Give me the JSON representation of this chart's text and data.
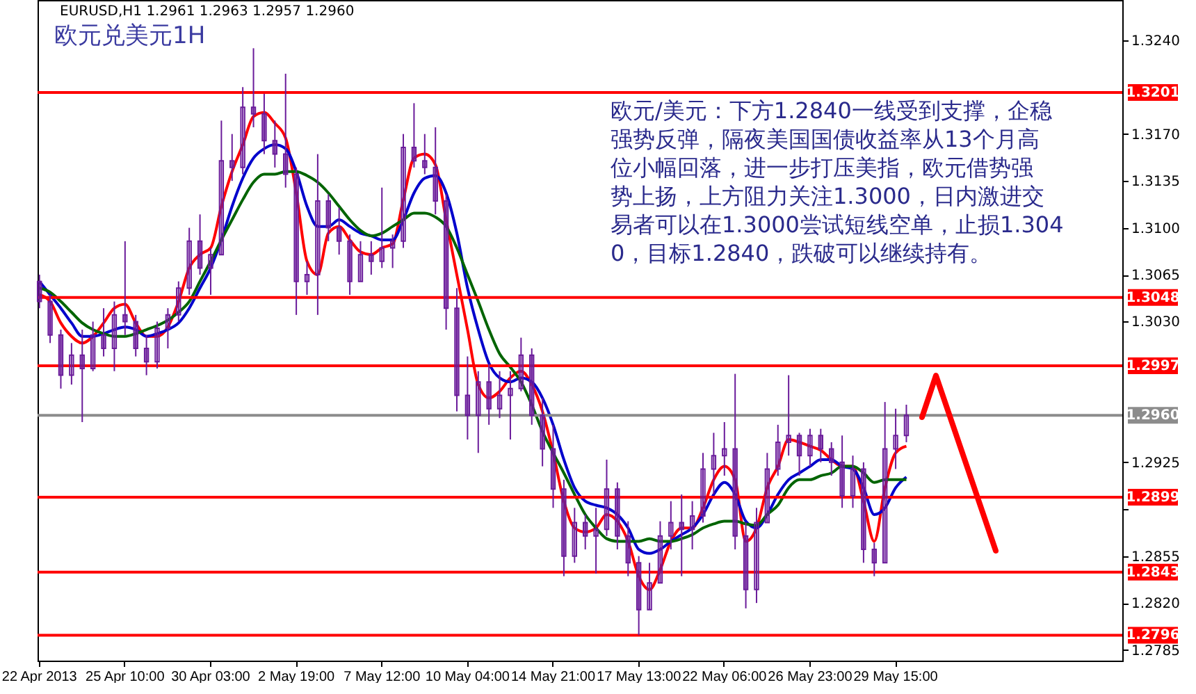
{
  "chart_data": {
    "type": "candlestick",
    "title": "欧元兑美元1H",
    "subtitle": "EURUSD,H1  1.2961 1.2963 1.2957 1.2960",
    "color": "#6a1b9a",
    "annotations": [
      "欧元/美元：下方1.2840一线受到支撑，企稳强势反弹，隔夜美国国债收益率从13个月高位小幅回落，进一步打压美指，欧元借势强势上扬，上方阻力关注1.3000，日内激进交易者可以在1.3000尝试短线空单，止损1.3040，目标1.2840，跌破可以继续持有。"
    ],
    "categories": [
      "22 Apr 2013",
      null,
      null,
      null,
      null,
      null,
      null,
      null,
      "25 Apr 10:00",
      null,
      null,
      null,
      null,
      null,
      null,
      null,
      "30 Apr 03:00",
      null,
      null,
      null,
      null,
      null,
      null,
      null,
      "2 May 19:00",
      null,
      null,
      null,
      null,
      null,
      null,
      null,
      "7 May 12:00",
      null,
      null,
      null,
      null,
      null,
      null,
      null,
      "10 May 04:00",
      null,
      null,
      null,
      null,
      null,
      null,
      null,
      "14 May 21:00",
      null,
      null,
      null,
      null,
      null,
      null,
      null,
      "17 May 13:00",
      null,
      null,
      null,
      null,
      null,
      null,
      null,
      "22 May 06:00",
      null,
      null,
      null,
      null,
      null,
      null,
      null,
      "26 May 23:00",
      null,
      null,
      null,
      null,
      null,
      null,
      null,
      "29 May 15:00",
      null,
      null,
      null,
      null,
      null,
      null,
      null,
      null,
      null,
      null,
      null,
      null,
      null,
      null,
      null,
      null,
      null,
      null,
      null,
      null,
      null
    ],
    "ohlc": [
      [
        1.306,
        1.3065,
        1.304,
        1.3045
      ],
      [
        1.3045,
        1.305,
        1.3014,
        1.302
      ],
      [
        1.302,
        1.3024,
        1.298,
        1.299
      ],
      [
        1.299,
        1.3014,
        1.2983,
        1.3005
      ],
      [
        1.3005,
        1.3024,
        1.2955,
        1.2995
      ],
      [
        1.2995,
        1.303,
        1.2993,
        1.302
      ],
      [
        1.302,
        1.304,
        1.3004,
        1.301
      ],
      [
        1.301,
        1.3045,
        1.2993,
        1.3035
      ],
      [
        1.3035,
        1.309,
        1.302,
        1.303
      ],
      [
        1.303,
        1.3035,
        1.3004,
        1.301
      ],
      [
        1.301,
        1.302,
        1.299,
        1.3
      ],
      [
        1.3,
        1.303,
        1.2995,
        1.3025
      ],
      [
        1.3025,
        1.304,
        1.301,
        1.3035
      ],
      [
        1.3035,
        1.306,
        1.303,
        1.3055
      ],
      [
        1.3055,
        1.31,
        1.305,
        1.309
      ],
      [
        1.309,
        1.311,
        1.3065,
        1.307
      ],
      [
        1.307,
        1.3085,
        1.305,
        1.308
      ],
      [
        1.308,
        1.318,
        1.308,
        1.315
      ],
      [
        1.315,
        1.317,
        1.3135,
        1.3145
      ],
      [
        1.3145,
        1.3205,
        1.314,
        1.319
      ],
      [
        1.319,
        1.3234,
        1.3175,
        1.3185
      ],
      [
        1.3185,
        1.32,
        1.3155,
        1.3165
      ],
      [
        1.3165,
        1.318,
        1.3145,
        1.3155
      ],
      [
        1.3155,
        1.3215,
        1.313,
        1.314
      ],
      [
        1.314,
        1.3145,
        1.3035,
        1.306
      ],
      [
        1.306,
        1.3075,
        1.305,
        1.3065
      ],
      [
        1.3065,
        1.3155,
        1.3035,
        1.312
      ],
      [
        1.312,
        1.3125,
        1.309,
        1.31
      ],
      [
        1.31,
        1.3115,
        1.308,
        1.309
      ],
      [
        1.309,
        1.3095,
        1.305,
        1.306
      ],
      [
        1.306,
        1.309,
        1.306,
        1.308
      ],
      [
        1.308,
        1.309,
        1.3065,
        1.3075
      ],
      [
        1.3075,
        1.313,
        1.307,
        1.3085
      ],
      [
        1.3085,
        1.3095,
        1.307,
        1.309
      ],
      [
        1.309,
        1.317,
        1.3085,
        1.316
      ],
      [
        1.316,
        1.3193,
        1.3145,
        1.315
      ],
      [
        1.315,
        1.317,
        1.314,
        1.3145
      ],
      [
        1.3145,
        1.3175,
        1.311,
        1.312
      ],
      [
        1.312,
        1.3125,
        1.3024,
        1.304
      ],
      [
        1.304,
        1.3055,
        1.2963,
        1.2975
      ],
      [
        1.2975,
        1.3004,
        1.2942,
        1.296
      ],
      [
        1.296,
        1.2993,
        1.2932,
        1.2985
      ],
      [
        1.2985,
        1.2998,
        1.2953,
        1.2965
      ],
      [
        1.2965,
        1.2993,
        1.2958,
        1.2975
      ],
      [
        1.2975,
        1.2993,
        1.2942,
        1.298
      ],
      [
        1.298,
        1.3018,
        1.2978,
        1.3005
      ],
      [
        1.3005,
        1.301,
        1.2953,
        1.296
      ],
      [
        1.296,
        1.2973,
        1.2922,
        1.2935
      ],
      [
        1.2935,
        1.2953,
        1.2891,
        1.2905
      ],
      [
        1.2905,
        1.2912,
        1.284,
        1.2855
      ],
      [
        1.2855,
        1.2891,
        1.285,
        1.288
      ],
      [
        1.288,
        1.2886,
        1.286,
        1.287
      ],
      [
        1.287,
        1.2891,
        1.2842,
        1.2875
      ],
      [
        1.2875,
        1.2927,
        1.287,
        1.2905
      ],
      [
        1.2905,
        1.291,
        1.286,
        1.287
      ],
      [
        1.287,
        1.2881,
        1.284,
        1.285
      ],
      [
        1.285,
        1.2855,
        1.2796,
        1.2815
      ],
      [
        1.2815,
        1.285,
        1.2815,
        1.2835
      ],
      [
        1.2835,
        1.2881,
        1.2835,
        1.287
      ],
      [
        1.287,
        1.2896,
        1.286,
        1.288
      ],
      [
        1.288,
        1.2901,
        1.284,
        1.2875
      ],
      [
        1.2875,
        1.2896,
        1.286,
        1.2885
      ],
      [
        1.2885,
        1.2932,
        1.288,
        1.292
      ],
      [
        1.292,
        1.2947,
        1.2901,
        1.293
      ],
      [
        1.293,
        1.2955,
        1.2915,
        1.2935
      ],
      [
        1.2935,
        1.2991,
        1.286,
        1.287
      ],
      [
        1.287,
        1.288,
        1.2816,
        1.283
      ],
      [
        1.283,
        1.2891,
        1.282,
        1.288
      ],
      [
        1.288,
        1.2932,
        1.288,
        1.292
      ],
      [
        1.292,
        1.2953,
        1.2915,
        1.294
      ],
      [
        1.294,
        1.299,
        1.293,
        1.2945
      ],
      [
        1.2945,
        1.2947,
        1.2915,
        1.293
      ],
      [
        1.293,
        1.295,
        1.2922,
        1.2945
      ],
      [
        1.2945,
        1.295,
        1.2925,
        1.2935
      ],
      [
        1.2935,
        1.294,
        1.2915,
        1.2925
      ],
      [
        1.2925,
        1.2945,
        1.2891,
        1.29
      ],
      [
        1.29,
        1.293,
        1.2891,
        1.292
      ],
      [
        1.292,
        1.2925,
        1.285,
        1.286
      ],
      [
        1.286,
        1.2865,
        1.284,
        1.285
      ],
      [
        1.285,
        1.297,
        1.285,
        1.2935
      ],
      [
        1.2935,
        1.2965,
        1.292,
        1.2945
      ],
      [
        1.2945,
        1.2968,
        1.294,
        1.296
      ],
      null,
      null,
      null,
      null,
      null,
      null,
      null,
      null,
      null,
      null,
      null,
      null,
      null,
      null,
      null,
      null,
      null,
      null,
      null,
      null
    ],
    "series": [
      {
        "type": "line",
        "color": "#ff0000",
        "values": [
          1.305,
          1.3045,
          1.3029,
          1.3019,
          1.3014,
          1.3019,
          1.3029,
          1.304,
          1.3043,
          1.3029,
          1.3019,
          1.3019,
          1.3026,
          1.3045,
          1.307,
          1.308,
          1.3085,
          1.3116,
          1.3142,
          1.3162,
          1.3183,
          1.3186,
          1.3178,
          1.3167,
          1.3126,
          1.3075,
          1.3065,
          1.3096,
          1.3101,
          1.3091,
          1.3082,
          1.308,
          1.3085,
          1.3088,
          1.3121,
          1.3152,
          1.3155,
          1.3147,
          1.3106,
          1.3065,
          1.3024,
          1.2983,
          1.2973,
          1.2978,
          1.2988,
          1.2993,
          1.2983,
          1.2963,
          1.2932,
          1.2896,
          1.2876,
          1.2873,
          1.2876,
          1.2886,
          1.2881,
          1.2866,
          1.284,
          1.283,
          1.2845,
          1.2866,
          1.2876,
          1.2876,
          1.2891,
          1.2912,
          1.2922,
          1.2912,
          1.2866,
          1.2876,
          1.2906,
          1.2922,
          1.2942,
          1.294,
          1.2937,
          1.2934,
          1.2927,
          1.2922,
          1.2922,
          1.2896,
          1.2866,
          1.2906,
          1.2932,
          1.2937,
          null,
          null,
          null,
          null,
          null,
          null,
          null,
          null,
          null,
          null,
          null,
          null,
          null,
          null,
          null,
          null,
          null,
          null,
          null,
          null
        ]
      },
      {
        "type": "line",
        "color": "#0000cc",
        "values": [
          1.306,
          1.305,
          1.304,
          1.3029,
          1.3019,
          1.3019,
          1.3021,
          1.3024,
          1.3026,
          1.3024,
          1.3019,
          1.3021,
          1.3024,
          1.3029,
          1.304,
          1.3055,
          1.307,
          1.3091,
          1.3116,
          1.3137,
          1.3152,
          1.3159,
          1.3162,
          1.3159,
          1.3142,
          1.3116,
          1.3101,
          1.3101,
          1.3106,
          1.3101,
          1.3096,
          1.3094,
          1.3091,
          1.3091,
          1.3106,
          1.3126,
          1.3137,
          1.3139,
          1.3126,
          1.3096,
          1.3055,
          1.3024,
          1.2999,
          1.2988,
          1.2985,
          1.2988,
          1.2985,
          1.2973,
          1.2953,
          1.2927,
          1.2906,
          1.2896,
          1.2893,
          1.2891,
          1.2886,
          1.2876,
          1.286,
          1.2857,
          1.286,
          1.2866,
          1.2871,
          1.2876,
          1.2886,
          1.2901,
          1.291,
          1.2901,
          1.2881,
          1.2876,
          1.2886,
          1.2901,
          1.2912,
          1.2917,
          1.2922,
          1.2927,
          1.2927,
          1.2922,
          1.292,
          1.2906,
          1.2886,
          1.2891,
          1.2906,
          1.2914,
          null,
          null,
          null,
          null,
          null,
          null,
          null,
          null,
          null,
          null,
          null,
          null,
          null,
          null,
          null,
          null,
          null,
          null,
          null,
          null
        ]
      },
      {
        "type": "line",
        "color": "#006400",
        "values": [
          1.3055,
          1.3052,
          1.3045,
          1.3037,
          1.3029,
          1.3024,
          1.3021,
          1.3019,
          1.3019,
          1.3021,
          1.3024,
          1.3027,
          1.3031,
          1.3037,
          1.3045,
          1.306,
          1.3075,
          1.3091,
          1.3106,
          1.3121,
          1.3134,
          1.314,
          1.314,
          1.3142,
          1.3142,
          1.3139,
          1.3134,
          1.3126,
          1.3116,
          1.3106,
          1.3098,
          1.3094,
          1.3096,
          1.3101,
          1.3106,
          1.3111,
          1.3111,
          1.3108,
          1.3101,
          1.3085,
          1.3065,
          1.3045,
          1.3024,
          1.3006,
          1.2996,
          1.2985,
          1.2968,
          1.2948,
          1.2932,
          1.2917,
          1.2901,
          1.2886,
          1.2876,
          1.2868,
          1.2866,
          1.2866,
          1.2866,
          1.2868,
          1.2866,
          1.2866,
          1.2868,
          1.2871,
          1.2876,
          1.2879,
          1.2881,
          1.2881,
          1.2879,
          1.2878,
          1.2886,
          1.2893,
          1.2906,
          1.2912,
          1.2912,
          1.2915,
          1.2917,
          1.2922,
          1.2922,
          1.2917,
          1.291,
          1.2912,
          1.2912,
          1.2912,
          null,
          null,
          null,
          null,
          null,
          null,
          null,
          null,
          null,
          null,
          null,
          null,
          null,
          null,
          null,
          null,
          null,
          null,
          null,
          null
        ]
      }
    ],
    "ylim": [
      1.2777,
      1.327
    ],
    "yticks": [
      {
        "value": 1.324,
        "label": "1.3240"
      },
      {
        "value": 1.317,
        "label": "1.3170"
      },
      1.3135,
      {
        "value": 1.31,
        "label": "1.3100"
      },
      1.3065,
      {
        "value": 1.303,
        "label": "1.3030"
      },
      1.2925,
      {
        "value": 1.289,
        "label": null
      },
      1.2855,
      {
        "value": 1.282,
        "label": "1.2820"
      },
      1.2785
    ],
    "ref_lines": [
      {
        "axis": "y",
        "value": 1.3201,
        "label": "1.3201",
        "color": "#ff0000"
      },
      {
        "axis": "y",
        "value": 1.3048,
        "label": "1.3048",
        "color": "#ff0000"
      },
      {
        "axis": "y",
        "value": 1.2997,
        "label": "1.2997",
        "color": "#ff0000"
      },
      {
        "axis": "y",
        "value": 1.296,
        "label": "1.2960",
        "color": "#8c8c8c"
      },
      {
        "axis": "y",
        "value": 1.2899,
        "label": "1.2899",
        "color": "#ff0000"
      },
      {
        "axis": "y",
        "value": 1.2843,
        "label": "1.2843",
        "color": "#ff0000"
      },
      {
        "axis": "y",
        "value": 1.2796,
        "label": "1.2796",
        "color": "#ff0000"
      }
    ]
  }
}
